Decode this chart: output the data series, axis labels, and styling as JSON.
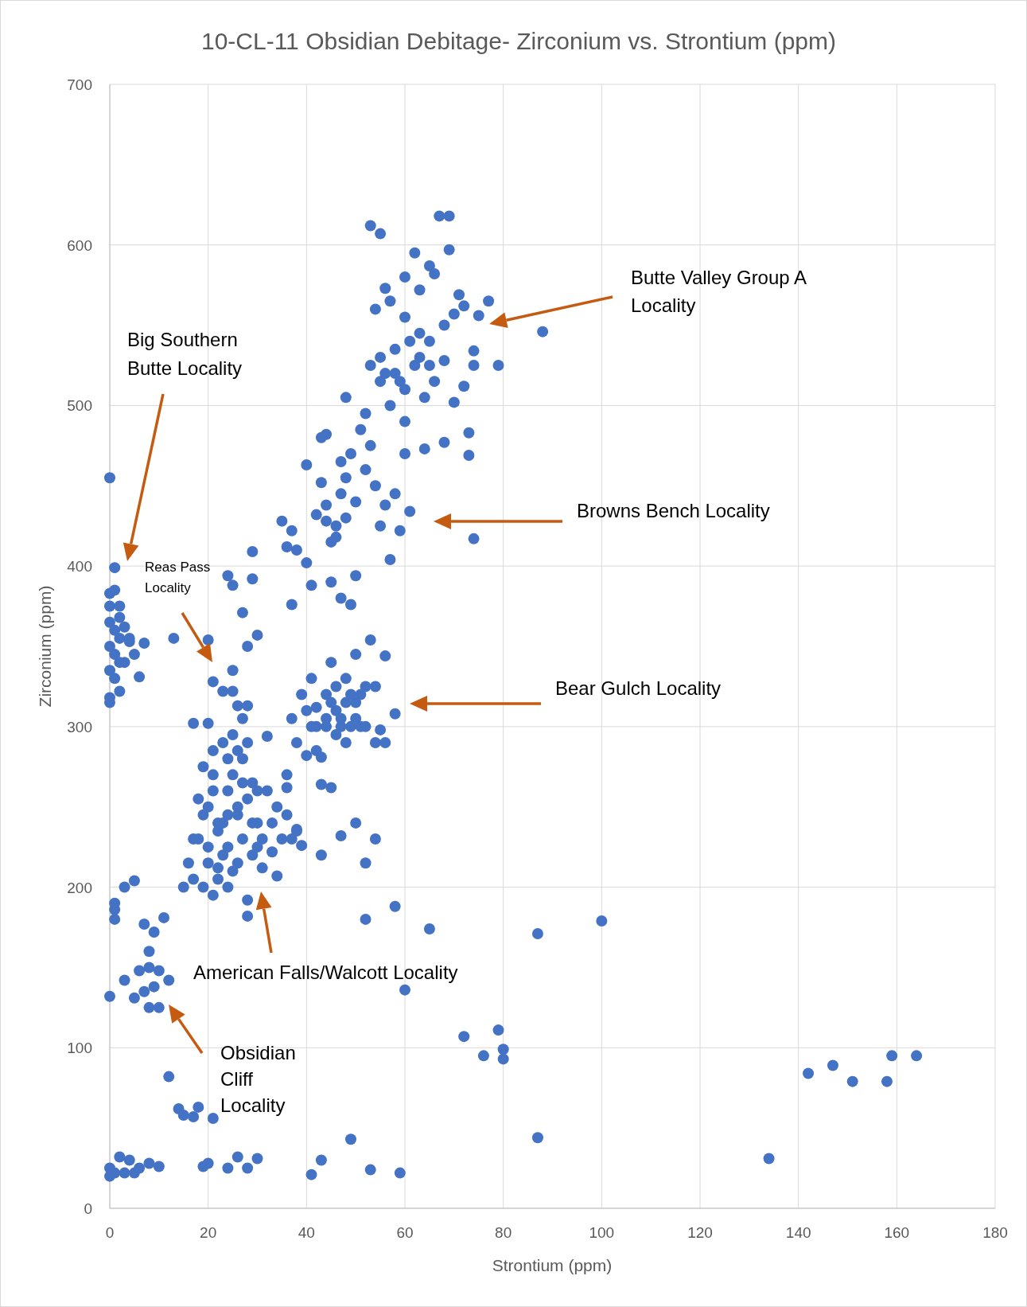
{
  "chart_data": {
    "type": "scatter",
    "title": "10-CL-11 Obsidian Debitage- Zirconium vs. Strontium (ppm)",
    "xlabel": "Strontium (ppm)",
    "ylabel": "Zirconium (ppm)",
    "xlim": [
      0,
      180
    ],
    "xticks": [
      0,
      20,
      40,
      60,
      80,
      100,
      120,
      140,
      160,
      180
    ],
    "ylim": [
      0,
      700
    ],
    "yticks": [
      0,
      100,
      200,
      300,
      400,
      500,
      600,
      700
    ],
    "grid": true,
    "marker": "circle",
    "annotations": [
      "Butte Valley Group A Locality",
      "Big Southern Butte Locality",
      "Reas Pass Locality",
      "Browns Bench Locality",
      "Bear Gulch Locality",
      "American Falls/Walcott Locality",
      "Obsidian Cliff Locality"
    ],
    "series": [
      {
        "color": "#4472c4",
        "x": [
          0,
          1,
          0,
          1,
          0,
          2,
          0,
          1,
          2,
          3,
          0,
          1,
          2,
          0,
          1,
          0,
          0,
          2,
          4,
          5,
          7,
          6,
          3,
          2,
          4,
          13,
          20,
          24,
          25,
          29,
          29,
          27,
          28,
          30,
          21,
          23,
          25,
          25,
          26,
          28,
          17,
          20,
          27,
          32,
          18,
          20,
          22,
          24,
          26,
          28,
          23,
          25,
          27,
          30,
          32,
          34,
          21,
          24,
          26,
          29,
          31,
          33,
          35,
          36,
          16,
          17,
          19,
          21,
          22,
          15,
          28,
          28,
          31,
          34,
          37,
          38,
          39,
          22,
          24,
          26,
          20,
          25,
          23,
          27,
          29,
          19,
          21,
          23,
          25,
          30,
          22,
          24,
          26,
          29,
          33,
          18,
          19,
          21,
          27,
          28,
          17,
          20,
          24,
          30,
          37,
          40,
          42,
          44,
          46,
          48,
          50,
          52,
          54,
          48,
          45,
          50,
          53,
          56,
          58,
          56,
          54,
          42,
          43,
          39,
          41,
          47,
          49,
          51,
          55,
          38,
          40,
          36,
          36,
          43,
          45,
          47,
          50,
          54,
          52,
          43,
          38,
          44,
          46,
          42,
          44,
          46,
          48,
          50,
          52,
          45,
          47,
          49,
          51,
          41,
          35,
          37,
          36,
          38,
          40,
          41,
          42,
          43,
          44,
          46,
          45,
          47,
          48,
          50,
          52,
          54,
          55,
          57,
          49,
          47,
          51,
          48,
          43,
          44,
          40,
          45,
          47,
          49,
          50,
          37,
          61,
          74,
          59,
          56,
          58,
          60,
          53,
          44,
          46,
          48,
          53,
          55,
          67,
          69,
          62,
          69,
          65,
          66,
          60,
          56,
          63,
          71,
          77,
          75,
          54,
          57,
          60,
          63,
          65,
          68,
          70,
          72,
          55,
          58,
          60,
          62,
          64,
          66,
          68,
          70,
          72,
          74,
          74,
          79,
          88,
          73,
          73,
          68,
          64,
          60,
          57,
          55,
          53,
          52,
          58,
          61,
          63,
          59,
          56,
          65,
          0,
          1,
          1,
          1,
          3,
          5,
          3,
          5,
          6,
          7,
          8,
          9,
          10,
          11,
          7,
          8,
          9,
          12,
          10,
          8,
          12,
          14,
          15,
          17,
          18,
          21,
          0,
          0,
          1,
          2,
          3,
          4,
          5,
          6,
          8,
          10,
          19,
          20,
          24,
          26,
          28,
          30,
          41,
          43,
          49,
          53,
          59,
          87,
          134,
          142,
          147,
          151,
          158,
          159,
          164,
          60,
          58,
          52,
          65,
          87,
          100,
          72,
          76,
          79,
          80,
          80
        ],
        "values": [
          455,
          399,
          383,
          385,
          375,
          375,
          365,
          360,
          355,
          362,
          350,
          345,
          340,
          335,
          330,
          318,
          315,
          322,
          353,
          345,
          352,
          331,
          340,
          368,
          355,
          355,
          354,
          394,
          388,
          409,
          392,
          371,
          350,
          357,
          328,
          322,
          335,
          322,
          313,
          313,
          302,
          302,
          305,
          294,
          230,
          250,
          240,
          260,
          245,
          255,
          220,
          210,
          230,
          240,
          260,
          250,
          270,
          280,
          285,
          265,
          230,
          222,
          230,
          245,
          215,
          205,
          200,
          195,
          212,
          200,
          192,
          182,
          212,
          207,
          230,
          235,
          226,
          235,
          225,
          250,
          225,
          270,
          240,
          265,
          240,
          275,
          285,
          290,
          295,
          260,
          205,
          200,
          215,
          220,
          240,
          255,
          245,
          260,
          280,
          290,
          230,
          215,
          245,
          225,
          305,
          310,
          300,
          320,
          310,
          330,
          315,
          300,
          325,
          290,
          340,
          345,
          354,
          344,
          308,
          290,
          290,
          285,
          281,
          320,
          330,
          305,
          300,
          320,
          298,
          290,
          282,
          262,
          270,
          264,
          262,
          232,
          240,
          230,
          215,
          220,
          236,
          305,
          295,
          312,
          300,
          325,
          315,
          305,
          325,
          315,
          300,
          320,
          300,
          300,
          428,
          422,
          412,
          410,
          402,
          388,
          432,
          452,
          438,
          425,
          415,
          445,
          430,
          440,
          460,
          450,
          425,
          404,
          470,
          465,
          485,
          505,
          480,
          482,
          463,
          390,
          380,
          376,
          394,
          376,
          434,
          417,
          422,
          438,
          445,
          470,
          475,
          428,
          418,
          455,
          612,
          607,
          618,
          618,
          595,
          597,
          587,
          582,
          580,
          573,
          572,
          569,
          565,
          556,
          560,
          565,
          555,
          545,
          540,
          550,
          557,
          562,
          530,
          520,
          510,
          525,
          505,
          515,
          528,
          502,
          512,
          525,
          534,
          525,
          546,
          483,
          469,
          477,
          473,
          490,
          500,
          515,
          525,
          495,
          535,
          540,
          530,
          515,
          520,
          525,
          132,
          190,
          186,
          180,
          200,
          204,
          142,
          131,
          148,
          177,
          160,
          172,
          148,
          181,
          135,
          125,
          138,
          142,
          125,
          150,
          82,
          62,
          58,
          57,
          63,
          56,
          25,
          20,
          22,
          32,
          22,
          30,
          22,
          25,
          28,
          26,
          26,
          28,
          25,
          32,
          25,
          31,
          21,
          30,
          43,
          24,
          22,
          44,
          31,
          84,
          89,
          79,
          79,
          95,
          95,
          136,
          188,
          180,
          174,
          171,
          179,
          107,
          95,
          111,
          99,
          93
        ]
      }
    ]
  }
}
